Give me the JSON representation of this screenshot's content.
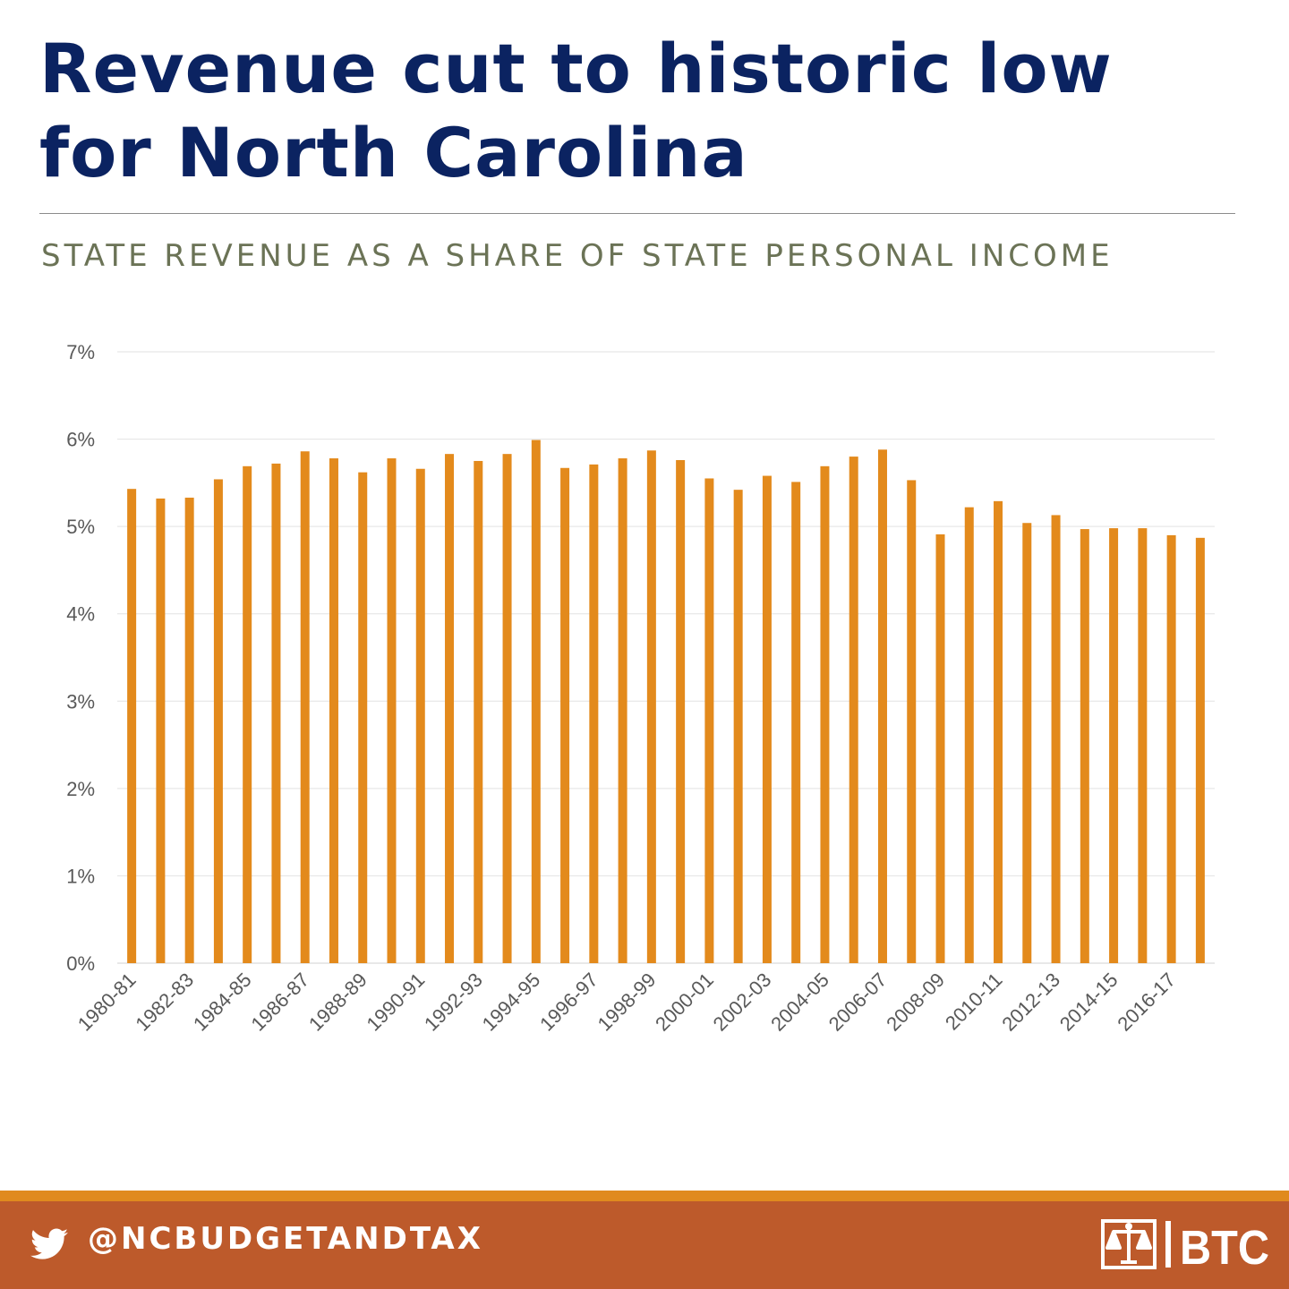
{
  "header": {
    "title_line1": "Revenue cut to historic low",
    "title_line2": "for North Carolina",
    "subtitle": "STATE REVENUE AS A SHARE OF STATE PERSONAL INCOME"
  },
  "footer": {
    "handle": "@NCBUDGETANDTAX",
    "icon": "twitter-bird-icon",
    "logo_text": "BTC",
    "colors": {
      "stripe": "#e08a1e",
      "band": "#bd5a2b"
    }
  },
  "chart_data": {
    "type": "bar",
    "title": "",
    "xlabel": "",
    "ylabel": "",
    "ylim": [
      0,
      7
    ],
    "yticks": [
      "0%",
      "1%",
      "2%",
      "3%",
      "4%",
      "5%",
      "6%",
      "7%"
    ],
    "grid": true,
    "bar_color": "#e38a1c",
    "categories": [
      "1980-81",
      "1981-82",
      "1982-83",
      "1983-84",
      "1984-85",
      "1985-86",
      "1986-87",
      "1987-88",
      "1988-89",
      "1989-90",
      "1990-91",
      "1991-92",
      "1992-93",
      "1993-94",
      "1994-95",
      "1995-96",
      "1996-97",
      "1997-98",
      "1998-99",
      "1999-00",
      "2000-01",
      "2001-02",
      "2002-03",
      "2003-04",
      "2004-05",
      "2005-06",
      "2006-07",
      "2007-08",
      "2008-09",
      "2009-10",
      "2010-11",
      "2011-12",
      "2012-13",
      "2013-14",
      "2014-15",
      "2015-16",
      "2016-17",
      "2017-18"
    ],
    "visible_tick_labels": [
      "1980-81",
      "1982-83",
      "1984-85",
      "1986-87",
      "1988-89",
      "1990-91",
      "1992-93",
      "1994-95",
      "1996-97",
      "1998-99",
      "2000-01",
      "2002-03",
      "2004-05",
      "2006-07",
      "2008-09",
      "2010-11",
      "2012-13",
      "2014-15",
      "2016-17"
    ],
    "values": [
      5.43,
      5.32,
      5.33,
      5.54,
      5.69,
      5.72,
      5.86,
      5.78,
      5.62,
      5.78,
      5.66,
      5.83,
      5.75,
      5.83,
      5.99,
      5.67,
      5.71,
      5.78,
      5.87,
      5.76,
      5.55,
      5.42,
      5.58,
      5.51,
      5.69,
      5.8,
      5.88,
      5.53,
      4.91,
      5.22,
      5.29,
      5.04,
      5.13,
      4.97,
      4.98,
      4.98,
      4.9,
      4.87
    ]
  }
}
